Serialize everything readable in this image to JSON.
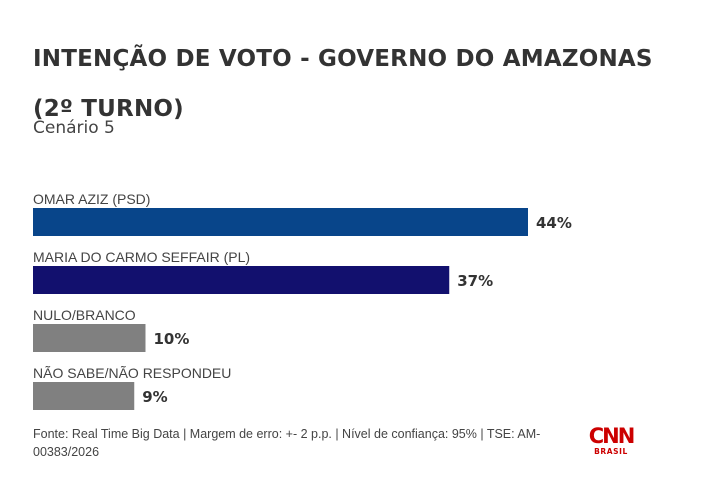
{
  "header": {
    "title": "INTENÇÃO DE VOTO - GOVERNO DO AMAZONAS (2º TURNO)",
    "subtitle": "Cenário 5"
  },
  "chart_data": {
    "type": "bar",
    "orientation": "horizontal",
    "title": "INTENÇÃO DE VOTO - GOVERNO DO AMAZONAS (2º TURNO)",
    "subtitle": "Cenário 5",
    "categories": [
      "OMAR AZIZ (PSD)",
      "MARIA DO CARMO SEFFAIR (PL)",
      "NULO/BRANCO",
      "NÃO SABE/NÃO RESPONDEU"
    ],
    "values": [
      44,
      37,
      10,
      9
    ],
    "value_labels": [
      "44%",
      "37%",
      "10%",
      "9%"
    ],
    "colors": [
      "#08458a",
      "#12106e",
      "#808080",
      "#808080"
    ],
    "xlim": [
      0,
      44
    ],
    "grid": false,
    "legend": "none"
  },
  "footer": {
    "source": "Fonte: Real Time Big Data | Margem de erro: +- 2 p.p. | Nível de confiança: 95% | TSE: AM-00383/2026"
  },
  "logo": {
    "brand": "CNN",
    "sub": "BRASIL",
    "color": "#cc0000"
  }
}
